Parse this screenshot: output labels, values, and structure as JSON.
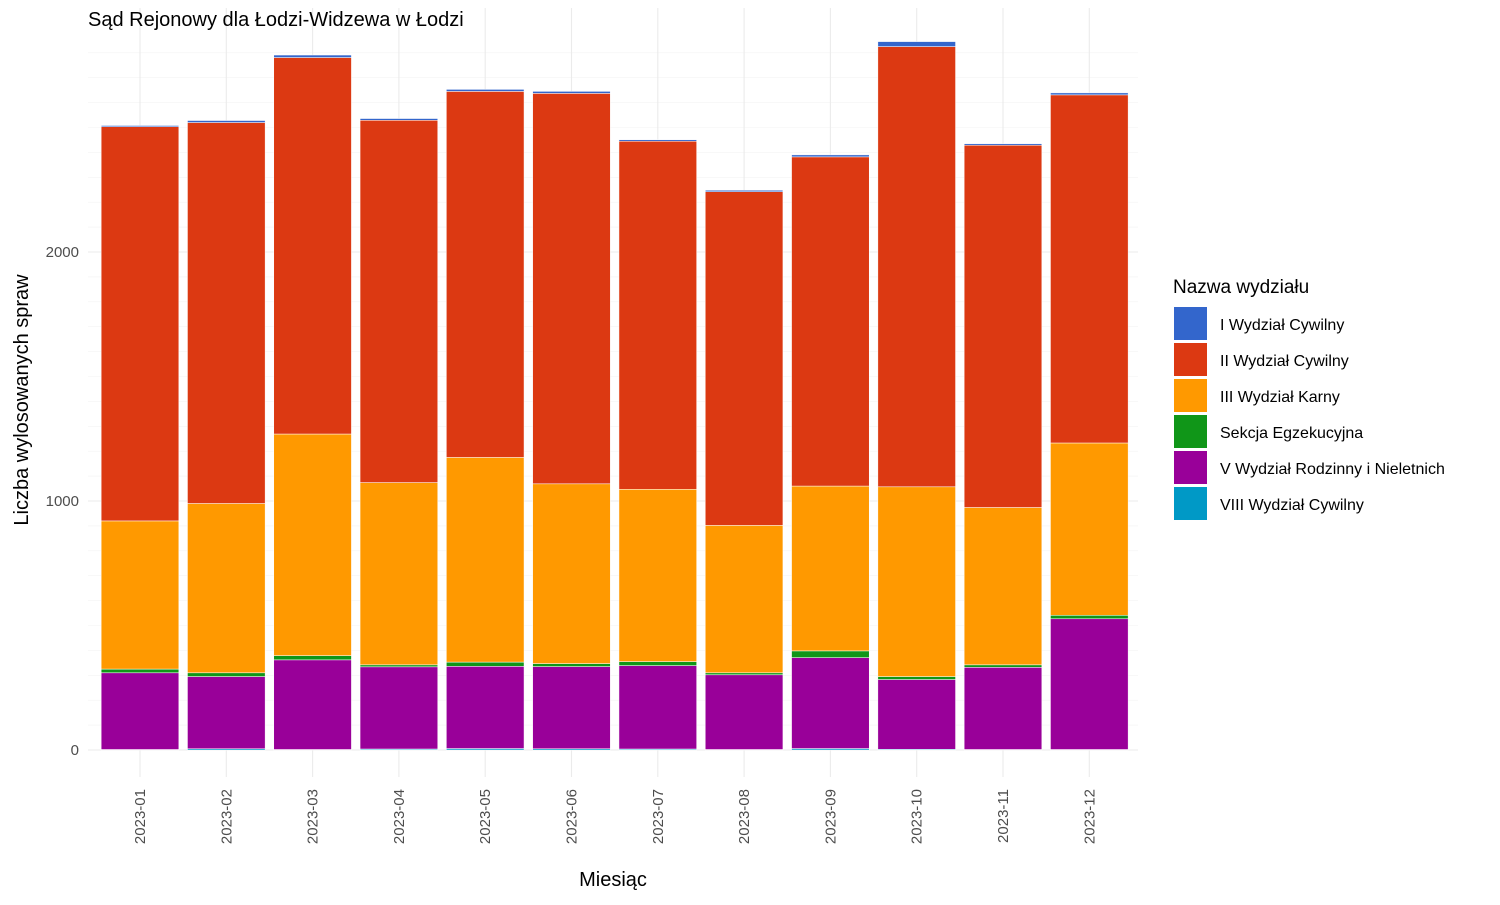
{
  "chart_data": {
    "type": "bar",
    "stacked": true,
    "title": "Sąd Rejonowy dla Łodzi-Widzewa w Łodzi",
    "xlabel": "Miesiąc",
    "ylabel": "Liczba wylosowanych spraw",
    "ylim": [
      0,
      2880
    ],
    "yticks": [
      0,
      1000,
      2000
    ],
    "grid": true,
    "legend": {
      "title": "Nazwa wydziału",
      "placement": "right"
    },
    "categories": [
      "2023-01",
      "2023-02",
      "2023-03",
      "2023-04",
      "2023-05",
      "2023-06",
      "2023-07",
      "2023-08",
      "2023-09",
      "2023-10",
      "2023-11",
      "2023-12"
    ],
    "series": [
      {
        "name": "I Wydział Cywilny",
        "color": "#3366cc",
        "values": [
          5,
          8,
          10,
          7,
          8,
          8,
          6,
          6,
          8,
          20,
          6,
          8
        ]
      },
      {
        "name": "II Wydział Cywilny",
        "color": "#dc3912",
        "values": [
          1583,
          1530,
          1512,
          1455,
          1470,
          1568,
          1398,
          1340,
          1322,
          1768,
          1455,
          1398
        ]
      },
      {
        "name": "III Wydział Karny",
        "color": "#ff9900",
        "values": [
          595,
          680,
          890,
          732,
          822,
          722,
          692,
          592,
          662,
          762,
          632,
          692
        ]
      },
      {
        "name": "Sekcja Egzekucyjna",
        "color": "#109618",
        "values": [
          15,
          15,
          17,
          8,
          17,
          12,
          16,
          8,
          27,
          12,
          10,
          14
        ]
      },
      {
        "name": "V Wydział Rodzinny i Nieletnich",
        "color": "#990099",
        "values": [
          308,
          290,
          360,
          330,
          330,
          330,
          335,
          300,
          365,
          280,
          330,
          525
        ]
      },
      {
        "name": "VIII Wydział Cywilny",
        "color": "#0099c6",
        "values": [
          2,
          5,
          2,
          4,
          6,
          5,
          4,
          2,
          6,
          3,
          2,
          2
        ]
      }
    ]
  }
}
